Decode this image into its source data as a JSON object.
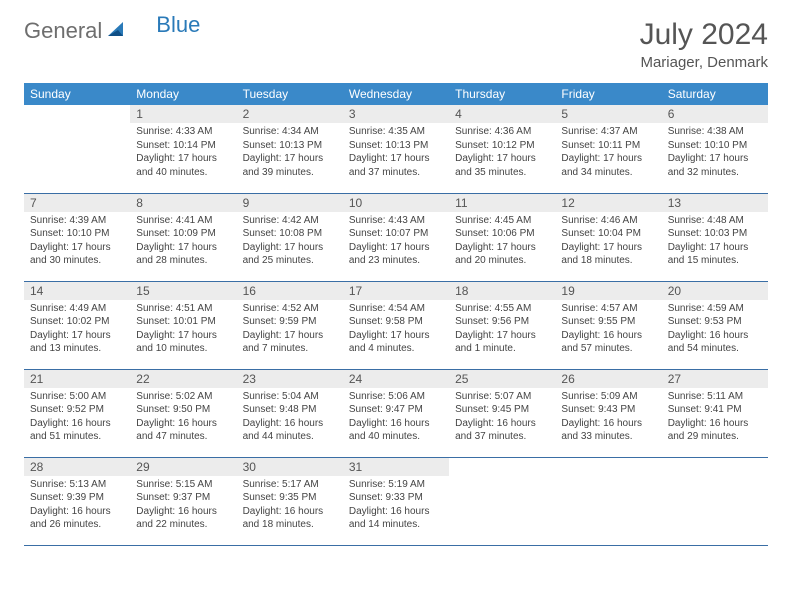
{
  "logo": {
    "text_general": "General",
    "text_blue": "Blue"
  },
  "title": "July 2024",
  "location": "Mariager, Denmark",
  "colors": {
    "header_bg": "#3a89c9",
    "header_text": "#ffffff",
    "daynum_bg": "#ececec",
    "row_border": "#3a6ea5",
    "logo_gray": "#6e6e6e",
    "logo_blue": "#2a7ab8"
  },
  "weekdays": [
    "Sunday",
    "Monday",
    "Tuesday",
    "Wednesday",
    "Thursday",
    "Friday",
    "Saturday"
  ],
  "weeks": [
    [
      null,
      {
        "n": "1",
        "sr": "Sunrise: 4:33 AM",
        "ss": "Sunset: 10:14 PM",
        "dl": "Daylight: 17 hours and 40 minutes."
      },
      {
        "n": "2",
        "sr": "Sunrise: 4:34 AM",
        "ss": "Sunset: 10:13 PM",
        "dl": "Daylight: 17 hours and 39 minutes."
      },
      {
        "n": "3",
        "sr": "Sunrise: 4:35 AM",
        "ss": "Sunset: 10:13 PM",
        "dl": "Daylight: 17 hours and 37 minutes."
      },
      {
        "n": "4",
        "sr": "Sunrise: 4:36 AM",
        "ss": "Sunset: 10:12 PM",
        "dl": "Daylight: 17 hours and 35 minutes."
      },
      {
        "n": "5",
        "sr": "Sunrise: 4:37 AM",
        "ss": "Sunset: 10:11 PM",
        "dl": "Daylight: 17 hours and 34 minutes."
      },
      {
        "n": "6",
        "sr": "Sunrise: 4:38 AM",
        "ss": "Sunset: 10:10 PM",
        "dl": "Daylight: 17 hours and 32 minutes."
      }
    ],
    [
      {
        "n": "7",
        "sr": "Sunrise: 4:39 AM",
        "ss": "Sunset: 10:10 PM",
        "dl": "Daylight: 17 hours and 30 minutes."
      },
      {
        "n": "8",
        "sr": "Sunrise: 4:41 AM",
        "ss": "Sunset: 10:09 PM",
        "dl": "Daylight: 17 hours and 28 minutes."
      },
      {
        "n": "9",
        "sr": "Sunrise: 4:42 AM",
        "ss": "Sunset: 10:08 PM",
        "dl": "Daylight: 17 hours and 25 minutes."
      },
      {
        "n": "10",
        "sr": "Sunrise: 4:43 AM",
        "ss": "Sunset: 10:07 PM",
        "dl": "Daylight: 17 hours and 23 minutes."
      },
      {
        "n": "11",
        "sr": "Sunrise: 4:45 AM",
        "ss": "Sunset: 10:06 PM",
        "dl": "Daylight: 17 hours and 20 minutes."
      },
      {
        "n": "12",
        "sr": "Sunrise: 4:46 AM",
        "ss": "Sunset: 10:04 PM",
        "dl": "Daylight: 17 hours and 18 minutes."
      },
      {
        "n": "13",
        "sr": "Sunrise: 4:48 AM",
        "ss": "Sunset: 10:03 PM",
        "dl": "Daylight: 17 hours and 15 minutes."
      }
    ],
    [
      {
        "n": "14",
        "sr": "Sunrise: 4:49 AM",
        "ss": "Sunset: 10:02 PM",
        "dl": "Daylight: 17 hours and 13 minutes."
      },
      {
        "n": "15",
        "sr": "Sunrise: 4:51 AM",
        "ss": "Sunset: 10:01 PM",
        "dl": "Daylight: 17 hours and 10 minutes."
      },
      {
        "n": "16",
        "sr": "Sunrise: 4:52 AM",
        "ss": "Sunset: 9:59 PM",
        "dl": "Daylight: 17 hours and 7 minutes."
      },
      {
        "n": "17",
        "sr": "Sunrise: 4:54 AM",
        "ss": "Sunset: 9:58 PM",
        "dl": "Daylight: 17 hours and 4 minutes."
      },
      {
        "n": "18",
        "sr": "Sunrise: 4:55 AM",
        "ss": "Sunset: 9:56 PM",
        "dl": "Daylight: 17 hours and 1 minute."
      },
      {
        "n": "19",
        "sr": "Sunrise: 4:57 AM",
        "ss": "Sunset: 9:55 PM",
        "dl": "Daylight: 16 hours and 57 minutes."
      },
      {
        "n": "20",
        "sr": "Sunrise: 4:59 AM",
        "ss": "Sunset: 9:53 PM",
        "dl": "Daylight: 16 hours and 54 minutes."
      }
    ],
    [
      {
        "n": "21",
        "sr": "Sunrise: 5:00 AM",
        "ss": "Sunset: 9:52 PM",
        "dl": "Daylight: 16 hours and 51 minutes."
      },
      {
        "n": "22",
        "sr": "Sunrise: 5:02 AM",
        "ss": "Sunset: 9:50 PM",
        "dl": "Daylight: 16 hours and 47 minutes."
      },
      {
        "n": "23",
        "sr": "Sunrise: 5:04 AM",
        "ss": "Sunset: 9:48 PM",
        "dl": "Daylight: 16 hours and 44 minutes."
      },
      {
        "n": "24",
        "sr": "Sunrise: 5:06 AM",
        "ss": "Sunset: 9:47 PM",
        "dl": "Daylight: 16 hours and 40 minutes."
      },
      {
        "n": "25",
        "sr": "Sunrise: 5:07 AM",
        "ss": "Sunset: 9:45 PM",
        "dl": "Daylight: 16 hours and 37 minutes."
      },
      {
        "n": "26",
        "sr": "Sunrise: 5:09 AM",
        "ss": "Sunset: 9:43 PM",
        "dl": "Daylight: 16 hours and 33 minutes."
      },
      {
        "n": "27",
        "sr": "Sunrise: 5:11 AM",
        "ss": "Sunset: 9:41 PM",
        "dl": "Daylight: 16 hours and 29 minutes."
      }
    ],
    [
      {
        "n": "28",
        "sr": "Sunrise: 5:13 AM",
        "ss": "Sunset: 9:39 PM",
        "dl": "Daylight: 16 hours and 26 minutes."
      },
      {
        "n": "29",
        "sr": "Sunrise: 5:15 AM",
        "ss": "Sunset: 9:37 PM",
        "dl": "Daylight: 16 hours and 22 minutes."
      },
      {
        "n": "30",
        "sr": "Sunrise: 5:17 AM",
        "ss": "Sunset: 9:35 PM",
        "dl": "Daylight: 16 hours and 18 minutes."
      },
      {
        "n": "31",
        "sr": "Sunrise: 5:19 AM",
        "ss": "Sunset: 9:33 PM",
        "dl": "Daylight: 16 hours and 14 minutes."
      },
      null,
      null,
      null
    ]
  ]
}
